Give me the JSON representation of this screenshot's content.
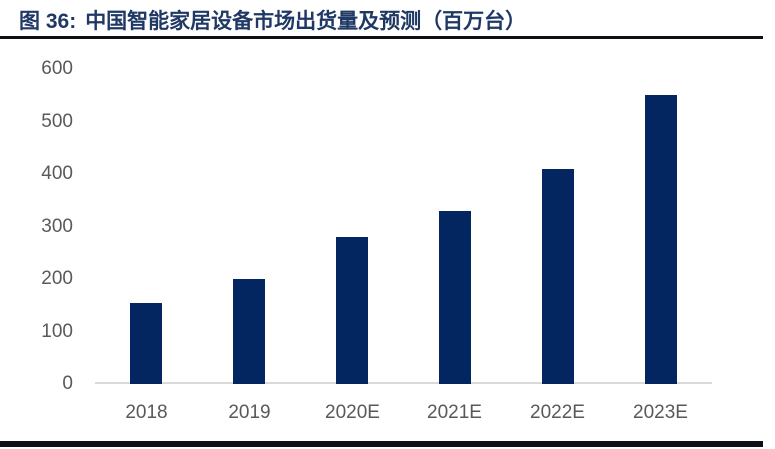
{
  "figure": {
    "label": "图 36:",
    "title": "中国智能家居设备市场出货量及预测（百万台）"
  },
  "colors": {
    "bar": "#032661",
    "title_text": "#1F3864",
    "rule": "#0E1018",
    "axis_label": "#595959",
    "baseline": "#D9D9D9",
    "background": "#FFFFFF"
  },
  "chart_data": {
    "type": "bar",
    "categories": [
      "2018",
      "2019",
      "2020E",
      "2021E",
      "2022E",
      "2023E"
    ],
    "values": [
      155,
      200,
      280,
      330,
      410,
      550
    ],
    "title": "中国智能家居设备市场出货量及预测（百万台）",
    "xlabel": "",
    "ylabel": "",
    "ylim": [
      0,
      600
    ],
    "yticks": [
      0,
      100,
      200,
      300,
      400,
      500,
      600
    ],
    "grid": false,
    "legend": null,
    "bar_color": "#032661"
  }
}
